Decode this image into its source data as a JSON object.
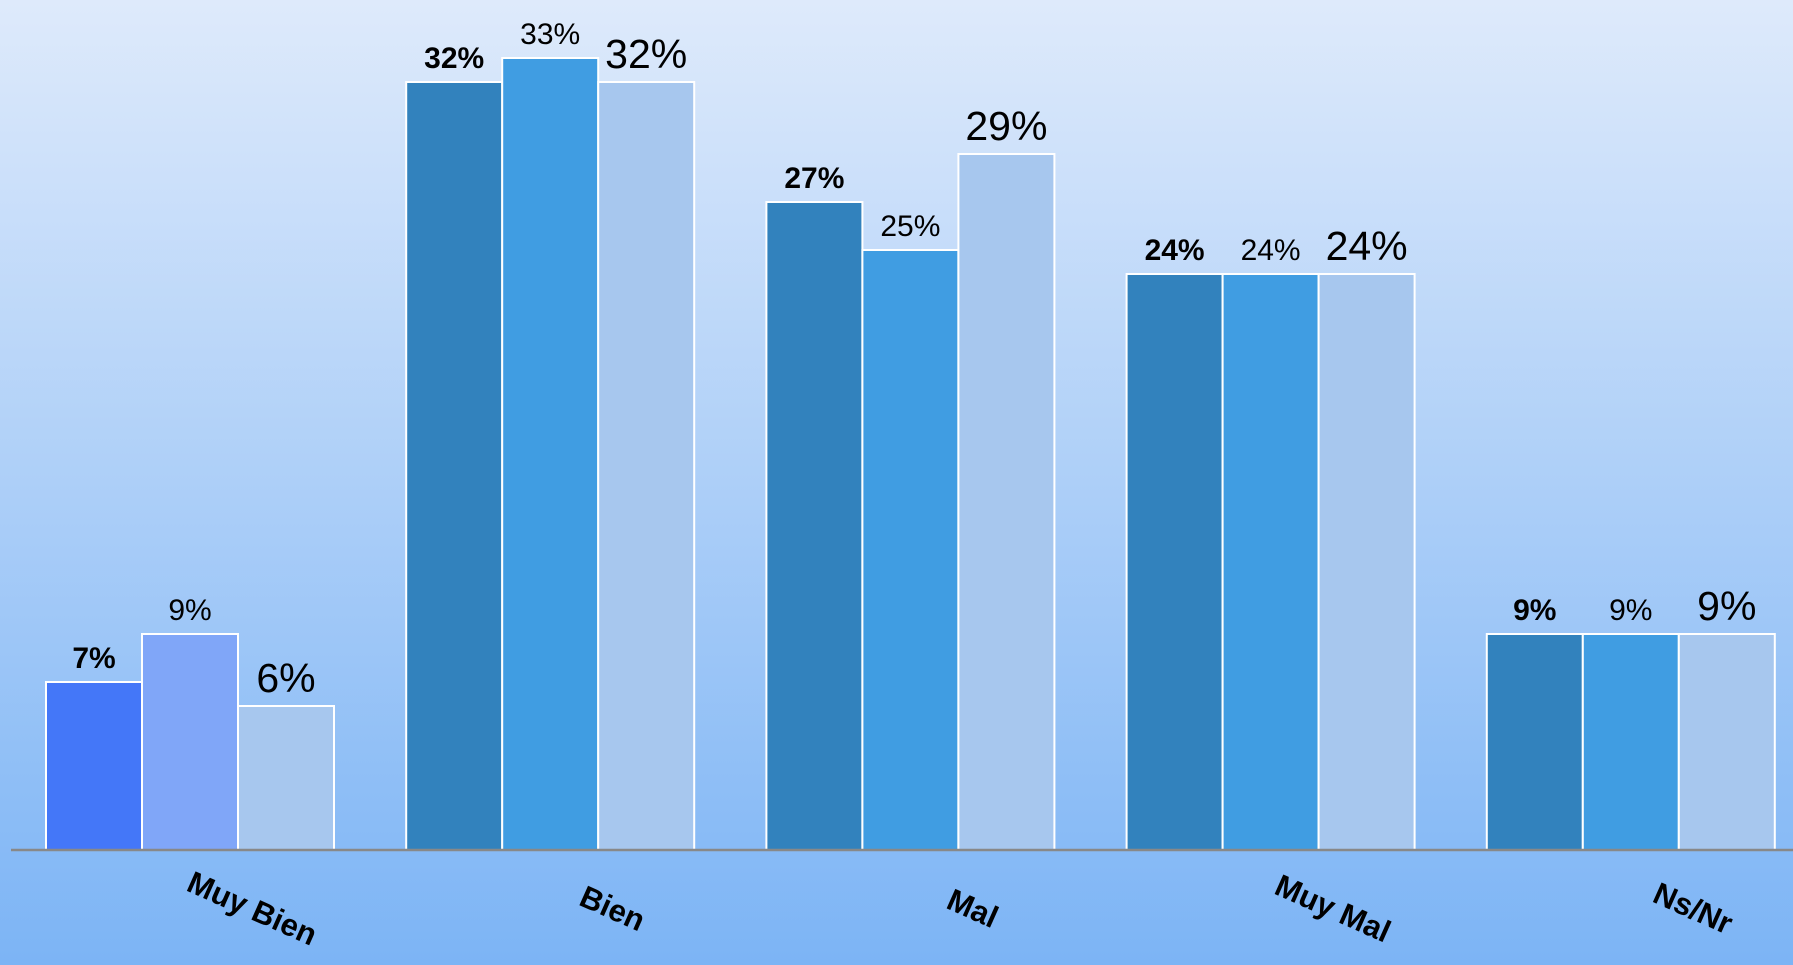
{
  "chart_data": {
    "type": "bar",
    "categories": [
      "Muy Bien",
      "Bien",
      "Mal",
      "Muy Mal",
      "Ns/Nr"
    ],
    "series": [
      {
        "colors": [
          "#4477f8",
          "#3282bd",
          "#3282bd",
          "#3282bd",
          "#3282bd"
        ],
        "values": [
          7,
          32,
          27,
          24,
          9
        ],
        "value_labels": [
          "7%",
          "32%",
          "27%",
          "24%",
          "9%"
        ]
      },
      {
        "colors": [
          "#80a6f8",
          "#409de2",
          "#409de2",
          "#409de2",
          "#409de2"
        ],
        "values": [
          9,
          33,
          25,
          24,
          9
        ],
        "value_labels": [
          "9%",
          "33%",
          "25%",
          "24%",
          "9%"
        ]
      },
      {
        "colors": [
          "#a7c7ee",
          "#a7c7ee",
          "#a7c7ee",
          "#a7c7ee",
          "#a7c7ee"
        ],
        "values": [
          6,
          32,
          29,
          24,
          9
        ],
        "value_labels": [
          "6%",
          "32%",
          "29%",
          "24%",
          "9%"
        ]
      }
    ]
  }
}
